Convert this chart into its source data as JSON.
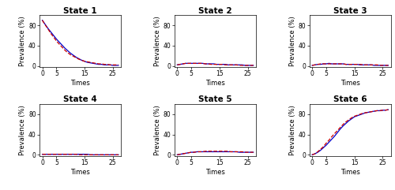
{
  "states": [
    "State 1",
    "State 2",
    "State 3",
    "State 4",
    "State 5",
    "State 6"
  ],
  "time": [
    0,
    1,
    2,
    3,
    4,
    5,
    6,
    7,
    8,
    9,
    10,
    11,
    12,
    13,
    14,
    15,
    16,
    17,
    18,
    19,
    20,
    21,
    22,
    23,
    24,
    25,
    26,
    27
  ],
  "observed": [
    [
      90,
      82,
      74,
      67,
      60,
      53,
      47,
      41,
      35,
      30,
      25,
      21,
      17,
      14,
      11,
      9,
      7,
      6,
      5,
      4,
      3,
      3,
      2,
      2,
      2,
      1,
      1,
      1
    ],
    [
      2,
      3,
      4,
      5,
      5,
      5,
      5,
      5,
      5,
      5,
      4,
      4,
      4,
      4,
      3,
      3,
      3,
      3,
      2,
      2,
      2,
      2,
      2,
      2,
      1,
      1,
      1,
      1
    ],
    [
      1,
      2,
      3,
      3,
      4,
      4,
      5,
      4,
      4,
      4,
      4,
      4,
      3,
      3,
      3,
      3,
      3,
      2,
      2,
      2,
      2,
      2,
      1,
      1,
      1,
      1,
      1,
      1
    ],
    [
      1,
      1,
      1,
      1,
      1,
      1,
      1,
      1,
      1,
      1,
      1,
      1,
      1,
      1,
      1,
      1,
      1,
      0,
      0,
      0,
      0,
      0,
      0,
      0,
      0,
      0,
      0,
      0
    ],
    [
      0,
      1,
      2,
      3,
      4,
      5,
      5,
      6,
      6,
      6,
      6,
      6,
      6,
      6,
      6,
      6,
      6,
      6,
      6,
      6,
      6,
      6,
      5,
      5,
      5,
      5,
      5,
      5
    ],
    [
      0,
      2,
      5,
      9,
      14,
      19,
      25,
      31,
      37,
      44,
      51,
      57,
      62,
      67,
      71,
      75,
      77,
      79,
      81,
      83,
      84,
      85,
      86,
      87,
      87,
      88,
      88,
      89
    ]
  ],
  "expected": [
    [
      90,
      81,
      73,
      64,
      57,
      49,
      43,
      37,
      31,
      26,
      22,
      19,
      16,
      13,
      11,
      9,
      8,
      7,
      6,
      5,
      4,
      4,
      3,
      3,
      2,
      2,
      2,
      2
    ],
    [
      2,
      3,
      4,
      5,
      5,
      5,
      5,
      5,
      5,
      5,
      4,
      4,
      3,
      3,
      3,
      3,
      3,
      2,
      2,
      2,
      2,
      2,
      1,
      1,
      1,
      1,
      1,
      1
    ],
    [
      1,
      2,
      3,
      4,
      4,
      4,
      4,
      4,
      4,
      4,
      4,
      4,
      3,
      3,
      3,
      3,
      3,
      3,
      2,
      2,
      2,
      2,
      2,
      2,
      1,
      1,
      1,
      1
    ],
    [
      1,
      1,
      1,
      1,
      1,
      1,
      1,
      1,
      1,
      1,
      1,
      1,
      1,
      0,
      0,
      0,
      0,
      0,
      0,
      0,
      0,
      0,
      0,
      0,
      0,
      0,
      0,
      0
    ],
    [
      0,
      1,
      2,
      3,
      4,
      5,
      5,
      6,
      6,
      6,
      7,
      7,
      7,
      7,
      7,
      7,
      7,
      7,
      7,
      6,
      6,
      6,
      6,
      6,
      5,
      5,
      5,
      5
    ],
    [
      0,
      2,
      6,
      11,
      16,
      23,
      29,
      36,
      42,
      48,
      54,
      60,
      65,
      69,
      73,
      76,
      78,
      80,
      82,
      83,
      84,
      85,
      86,
      87,
      87,
      88,
      88,
      89
    ]
  ],
  "ylim": [
    -2,
    100
  ],
  "xlim": [
    -1,
    28
  ],
  "xticks": [
    0,
    5,
    15,
    25
  ],
  "yticks": [
    0,
    40,
    80
  ],
  "obs_color": "#0000CC",
  "exp_color": "#CC0000",
  "obs_lw": 0.9,
  "exp_lw": 0.9,
  "title_fontsize": 7.5,
  "label_fontsize": 6.0,
  "tick_fontsize": 5.5,
  "xlabel": "Times",
  "ylabel": "Prevalence (%)"
}
